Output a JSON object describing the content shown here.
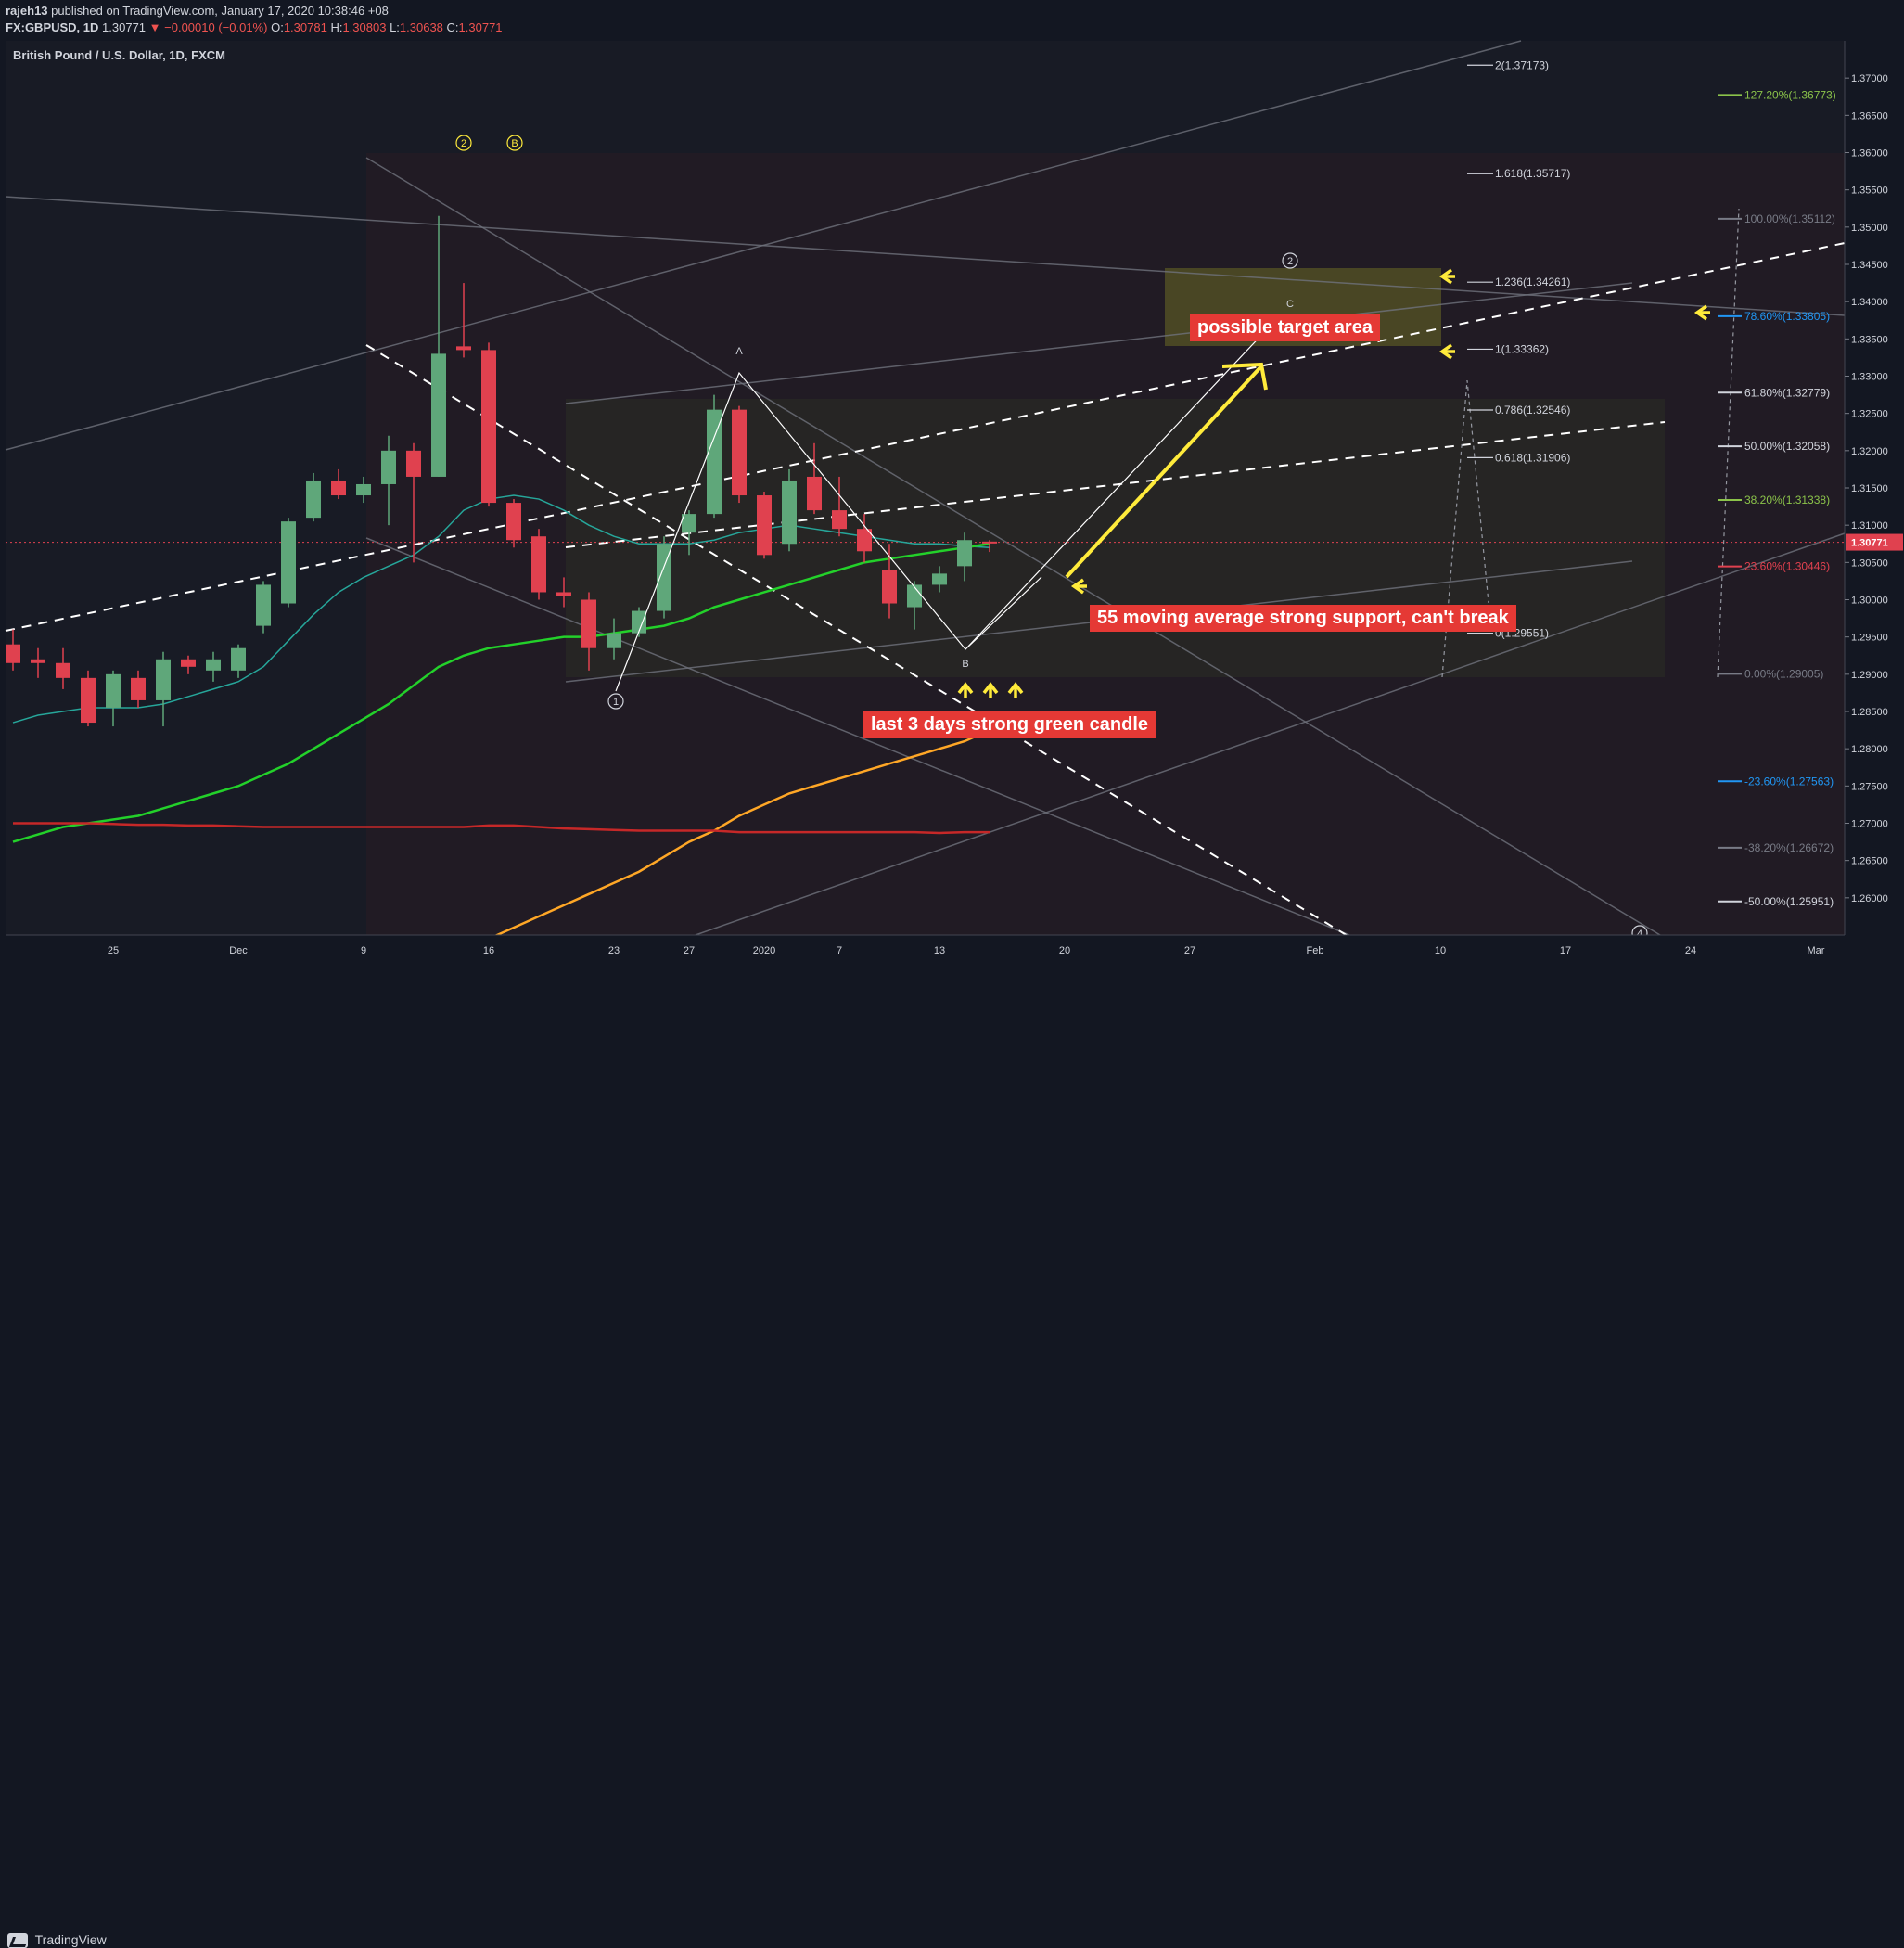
{
  "header": {
    "author": "rajeh13",
    "published_text": "published on TradingView.com, January 17, 2020 10:38:46 +08",
    "symbol_line": "FX:GBPUSD, 1D",
    "last": "1.30771",
    "change": "▼ −0.00010 (−0.01%)",
    "o_label": "O:",
    "o": "1.30781",
    "h_label": "H:",
    "h": "1.30803",
    "l_label": "L:",
    "l": "1.30638",
    "c_label": "C:",
    "c": "1.30771"
  },
  "chart_title": "British Pound / U.S. Dollar, 1D, FXCM",
  "footer": {
    "brand": "TradingView"
  },
  "colors": {
    "up": "#5fa77a",
    "down": "#e0414f",
    "ma_cyan": "#26a69a",
    "ma_green": "#23d12a",
    "ma_orange": "#ffa726",
    "ma_red": "#c62828",
    "annotation_bg": "#e53935",
    "arrow_yellow": "#ffeb3b"
  },
  "annotations": {
    "target": "possible target area",
    "support": "55 moving average strong support, can't break",
    "candles": "last 3 days strong green candle"
  },
  "chart_data": {
    "type": "candlestick",
    "title": "British Pound / U.S. Dollar, 1D, FXCM",
    "ylim": [
      1.255,
      1.375
    ],
    "y_ticks": [
      "1.37000",
      "1.36500",
      "1.36000",
      "1.35500",
      "1.35000",
      "1.34500",
      "1.34000",
      "1.33500",
      "1.33000",
      "1.32500",
      "1.32000",
      "1.31500",
      "1.31000",
      "1.30500",
      "1.30000",
      "1.29500",
      "1.29000",
      "1.28500",
      "1.28000",
      "1.27500",
      "1.27000",
      "1.26500",
      "1.26000"
    ],
    "current_price": "1.30771",
    "x_ticks": [
      {
        "label": "25",
        "i": 4
      },
      {
        "label": "Dec",
        "i": 9
      },
      {
        "label": "9",
        "i": 14
      },
      {
        "label": "16",
        "i": 19
      },
      {
        "label": "23",
        "i": 24
      },
      {
        "label": "27",
        "i": 27
      },
      {
        "label": "2020",
        "i": 30
      },
      {
        "label": "7",
        "i": 33
      },
      {
        "label": "13",
        "i": 37
      },
      {
        "label": "20",
        "i": 42
      },
      {
        "label": "27",
        "i": 47
      },
      {
        "label": "Feb",
        "i": 52
      },
      {
        "label": "10",
        "i": 57
      },
      {
        "label": "17",
        "i": 62
      },
      {
        "label": "24",
        "i": 67
      },
      {
        "label": "Mar",
        "i": 72
      }
    ],
    "candles": [
      {
        "o": 1.294,
        "h": 1.296,
        "l": 1.2905,
        "c": 1.2915
      },
      {
        "o": 1.292,
        "h": 1.2935,
        "l": 1.2895,
        "c": 1.2915
      },
      {
        "o": 1.2915,
        "h": 1.2935,
        "l": 1.288,
        "c": 1.2895
      },
      {
        "o": 1.2895,
        "h": 1.2905,
        "l": 1.283,
        "c": 1.2835
      },
      {
        "o": 1.2855,
        "h": 1.2905,
        "l": 1.283,
        "c": 1.29
      },
      {
        "o": 1.2895,
        "h": 1.2905,
        "l": 1.2855,
        "c": 1.2865
      },
      {
        "o": 1.2865,
        "h": 1.293,
        "l": 1.283,
        "c": 1.292
      },
      {
        "o": 1.292,
        "h": 1.2925,
        "l": 1.29,
        "c": 1.291
      },
      {
        "o": 1.2905,
        "h": 1.293,
        "l": 1.289,
        "c": 1.292
      },
      {
        "o": 1.2905,
        "h": 1.294,
        "l": 1.2895,
        "c": 1.2935
      },
      {
        "o": 1.2965,
        "h": 1.3025,
        "l": 1.2955,
        "c": 1.302
      },
      {
        "o": 1.2995,
        "h": 1.311,
        "l": 1.299,
        "c": 1.3105
      },
      {
        "o": 1.311,
        "h": 1.317,
        "l": 1.3105,
        "c": 1.316
      },
      {
        "o": 1.316,
        "h": 1.3175,
        "l": 1.3135,
        "c": 1.314
      },
      {
        "o": 1.314,
        "h": 1.3165,
        "l": 1.313,
        "c": 1.3155
      },
      {
        "o": 1.3155,
        "h": 1.322,
        "l": 1.31,
        "c": 1.32
      },
      {
        "o": 1.32,
        "h": 1.321,
        "l": 1.305,
        "c": 1.3165
      },
      {
        "o": 1.3165,
        "h": 1.3515,
        "l": 1.3165,
        "c": 1.333
      },
      {
        "o": 1.334,
        "h": 1.3425,
        "l": 1.3325,
        "c": 1.3335
      },
      {
        "o": 1.3335,
        "h": 1.3345,
        "l": 1.3125,
        "c": 1.313
      },
      {
        "o": 1.313,
        "h": 1.3135,
        "l": 1.307,
        "c": 1.308
      },
      {
        "o": 1.3085,
        "h": 1.3095,
        "l": 1.3,
        "c": 1.301
      },
      {
        "o": 1.301,
        "h": 1.303,
        "l": 1.299,
        "c": 1.3005
      },
      {
        "o": 1.3,
        "h": 1.301,
        "l": 1.2905,
        "c": 1.2935
      },
      {
        "o": 1.2935,
        "h": 1.2975,
        "l": 1.292,
        "c": 1.2955
      },
      {
        "o": 1.2955,
        "h": 1.299,
        "l": 1.295,
        "c": 1.2985
      },
      {
        "o": 1.2985,
        "h": 1.3085,
        "l": 1.2975,
        "c": 1.3075
      },
      {
        "o": 1.309,
        "h": 1.312,
        "l": 1.306,
        "c": 1.3115
      },
      {
        "o": 1.3115,
        "h": 1.3275,
        "l": 1.311,
        "c": 1.3255
      },
      {
        "o": 1.3255,
        "h": 1.326,
        "l": 1.313,
        "c": 1.314
      },
      {
        "o": 1.314,
        "h": 1.3145,
        "l": 1.3055,
        "c": 1.306
      },
      {
        "o": 1.3075,
        "h": 1.3175,
        "l": 1.3065,
        "c": 1.316
      },
      {
        "o": 1.3165,
        "h": 1.321,
        "l": 1.3115,
        "c": 1.312
      },
      {
        "o": 1.312,
        "h": 1.3165,
        "l": 1.3085,
        "c": 1.3095
      },
      {
        "o": 1.3095,
        "h": 1.3115,
        "l": 1.305,
        "c": 1.3065
      },
      {
        "o": 1.304,
        "h": 1.3075,
        "l": 1.2975,
        "c": 1.2995
      },
      {
        "o": 1.299,
        "h": 1.3025,
        "l": 1.296,
        "c": 1.302
      },
      {
        "o": 1.302,
        "h": 1.3045,
        "l": 1.301,
        "c": 1.3035
      },
      {
        "o": 1.3045,
        "h": 1.309,
        "l": 1.3025,
        "c": 1.308
      },
      {
        "o": 1.3078,
        "h": 1.308,
        "l": 1.3064,
        "c": 1.3077
      }
    ],
    "series": [
      {
        "name": "",
        "color": "#26a69a",
        "values": [
          1.2835,
          1.2845,
          1.285,
          1.2855,
          1.2855,
          1.2855,
          1.286,
          1.287,
          1.288,
          1.289,
          1.291,
          1.2945,
          1.298,
          1.301,
          1.303,
          1.3045,
          1.306,
          1.3085,
          1.312,
          1.3135,
          1.314,
          1.3135,
          1.312,
          1.31,
          1.3085,
          1.3075,
          1.3075,
          1.3075,
          1.308,
          1.309,
          1.3095,
          1.31,
          1.3095,
          1.309,
          1.3085,
          1.308,
          1.3075,
          1.3075,
          1.3072,
          1.307
        ]
      },
      {
        "name": "",
        "color": "#23d12a",
        "values": [
          1.2675,
          1.2685,
          1.2695,
          1.27,
          1.2705,
          1.271,
          1.272,
          1.273,
          1.274,
          1.275,
          1.2765,
          1.278,
          1.28,
          1.282,
          1.284,
          1.286,
          1.2885,
          1.291,
          1.2925,
          1.2935,
          1.294,
          1.2945,
          1.295,
          1.295,
          1.2955,
          1.296,
          1.2965,
          1.2975,
          1.299,
          1.3,
          1.301,
          1.302,
          1.303,
          1.304,
          1.305,
          1.3055,
          1.306,
          1.3065,
          1.307,
          1.3075
        ]
      },
      {
        "name": "",
        "color": "#ffa726",
        "start_index": 19,
        "values": [
          1.2545,
          1.256,
          1.2575,
          1.259,
          1.2605,
          1.262,
          1.2635,
          1.2655,
          1.2675,
          1.269,
          1.271,
          1.2725,
          1.274,
          1.275,
          1.276,
          1.277,
          1.278,
          1.279,
          1.28,
          1.281,
          1.2825
        ]
      },
      {
        "name": "",
        "color": "#c62828",
        "values": [
          1.27,
          1.27,
          1.27,
          1.27,
          1.2699,
          1.2698,
          1.2698,
          1.2697,
          1.2697,
          1.2696,
          1.2695,
          1.2695,
          1.2695,
          1.2695,
          1.2695,
          1.2695,
          1.2695,
          1.2695,
          1.2695,
          1.2697,
          1.2697,
          1.2695,
          1.2693,
          1.2692,
          1.2691,
          1.269,
          1.269,
          1.269,
          1.269,
          1.2688,
          1.2688,
          1.2688,
          1.2688,
          1.2688,
          1.2688,
          1.2688,
          1.2688,
          1.2687,
          1.2688,
          1.2688
        ]
      }
    ],
    "fib_extension": [
      {
        "label": "2(1.37173)",
        "v": 1.37173
      },
      {
        "label": "1.618(1.35717)",
        "v": 1.35717
      },
      {
        "label": "1.236(1.34261)",
        "v": 1.34261
      },
      {
        "label": "1(1.33362)",
        "v": 1.33362
      },
      {
        "label": "0.786(1.32546)",
        "v": 1.32546
      },
      {
        "label": "0.618(1.31906)",
        "v": 1.31906
      },
      {
        "label": "0(1.29551)",
        "v": 1.29551
      }
    ],
    "fib_retracement": [
      {
        "label": "127.20%(1.36773)",
        "v": 1.36773,
        "color": "#8bc34a"
      },
      {
        "label": "100.00%(1.35112)",
        "v": 1.35112,
        "color": "#787b86"
      },
      {
        "label": "78.60%(1.33805)",
        "v": 1.33805,
        "color": "#2196f3"
      },
      {
        "label": "61.80%(1.32779)",
        "v": 1.32779,
        "color": "#d1d4dc"
      },
      {
        "label": "50.00%(1.32058)",
        "v": 1.32058,
        "color": "#d1d4dc"
      },
      {
        "label": "38.20%(1.31338)",
        "v": 1.31338,
        "color": "#8bc34a"
      },
      {
        "label": "23.60%(1.30446)",
        "v": 1.30446,
        "color": "#e0414f"
      },
      {
        "label": "0.00%(1.29005)",
        "v": 1.29005,
        "color": "#787b86"
      },
      {
        "label": "-23.60%(1.27563)",
        "v": 1.27563,
        "color": "#2196f3"
      },
      {
        "label": "-38.20%(1.26672)",
        "v": 1.26672,
        "color": "#787b86"
      },
      {
        "label": "-50.00%(1.25951)",
        "v": 1.25951,
        "color": "#d1d4dc"
      }
    ],
    "wave_labels": [
      "2",
      "B",
      "1",
      "A",
      "B",
      "C",
      "2",
      "4"
    ]
  }
}
